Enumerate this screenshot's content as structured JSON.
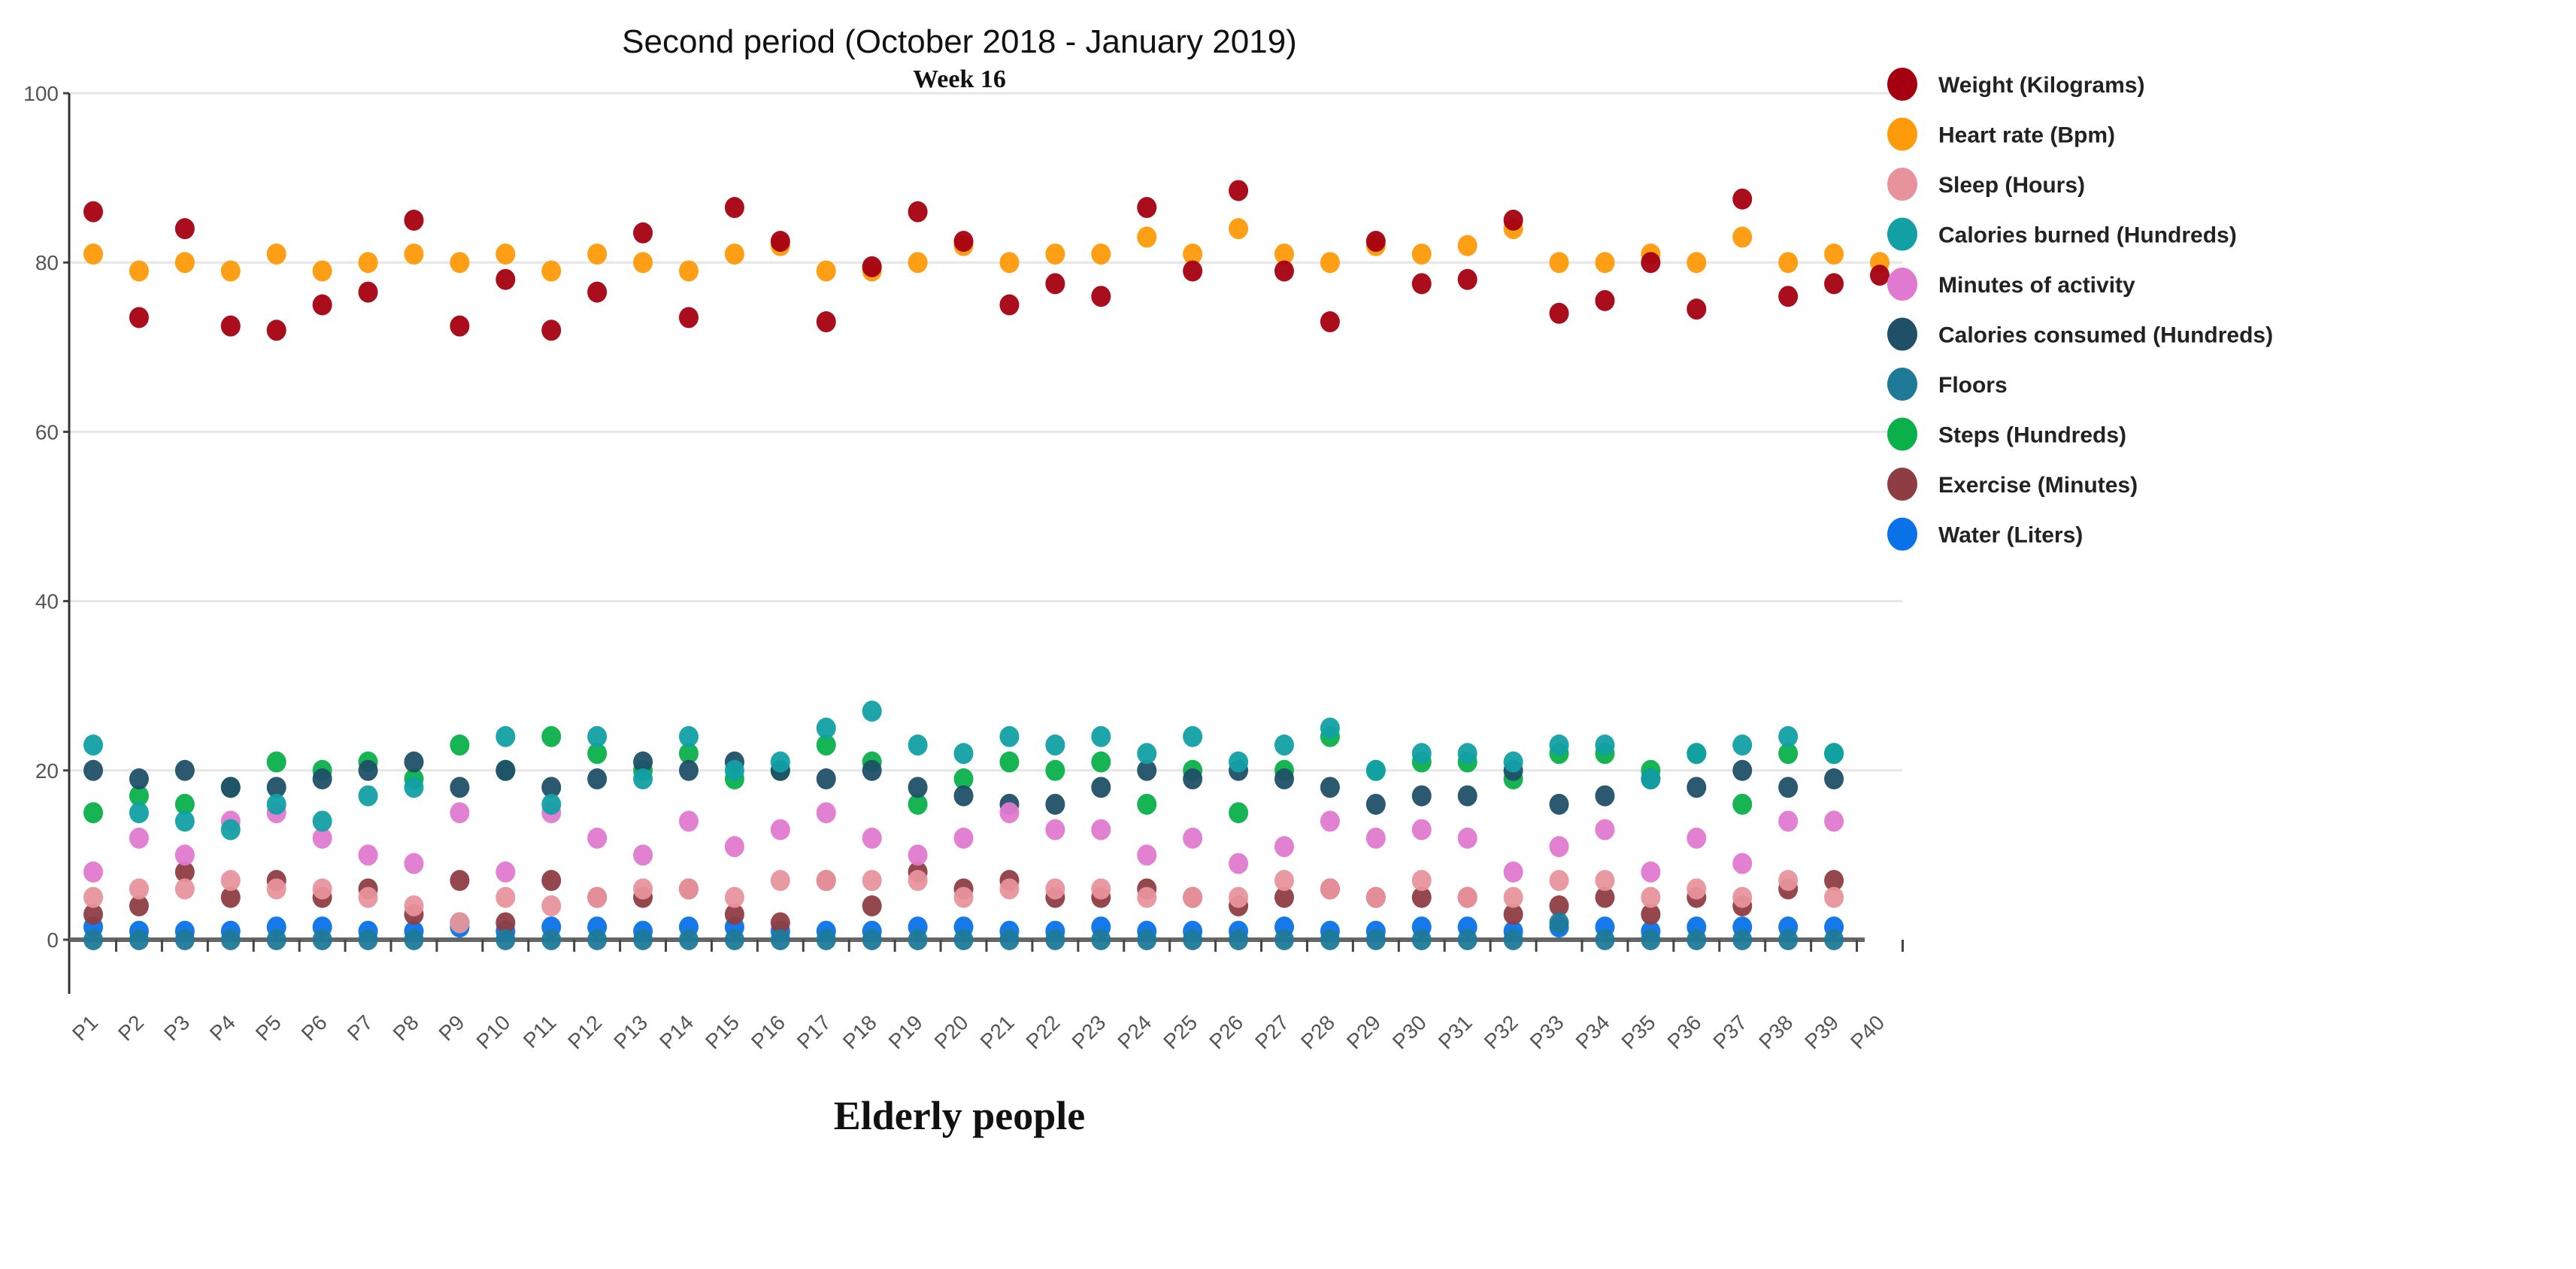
{
  "chart_data": {
    "type": "scatter",
    "title": "Second period (October 2018 - January 2019)",
    "subtitle": "Week 16",
    "xlabel": "Elderly people",
    "ylabel": "",
    "ylim": [
      0,
      100
    ],
    "yticks": [
      0,
      20,
      40,
      60,
      80,
      100
    ],
    "grid": true,
    "legend_position": "right",
    "categories": [
      "P1",
      "P2",
      "P3",
      "P4",
      "P5",
      "P6",
      "P7",
      "P8",
      "P9",
      "P10",
      "P11",
      "P12",
      "P13",
      "P14",
      "P15",
      "P16",
      "P17",
      "P18",
      "P19",
      "P20",
      "P21",
      "P22",
      "P23",
      "P24",
      "P25",
      "P26",
      "P27",
      "P28",
      "P29",
      "P30",
      "P31",
      "P32",
      "P33",
      "P34",
      "P35",
      "P36",
      "P37",
      "P38",
      "P39",
      "P40"
    ],
    "series": [
      {
        "name": "Weight (Kilograms)",
        "color": "#a50010",
        "values": [
          86,
          73.5,
          84,
          72.5,
          72,
          75,
          76.5,
          85,
          72.5,
          78,
          72,
          76.5,
          83.5,
          73.5,
          86.5,
          82.5,
          73,
          79.5,
          86,
          82.5,
          75,
          77.5,
          76,
          86.5,
          79,
          88.5,
          79,
          73,
          82.5,
          77.5,
          78,
          85,
          74,
          75.5,
          80,
          74.5,
          87.5,
          76,
          77.5,
          78.5
        ]
      },
      {
        "name": "Heart rate (Bpm)",
        "color": "#ff9a0a",
        "values": [
          81,
          79,
          80,
          79,
          81,
          79,
          80,
          81,
          80,
          81,
          79,
          81,
          80,
          79,
          81,
          82,
          79,
          79,
          80,
          82,
          80,
          81,
          81,
          83,
          81,
          84,
          81,
          80,
          82,
          81,
          82,
          84,
          80,
          80,
          81,
          80,
          83,
          80,
          81,
          80
        ]
      },
      {
        "name": "Sleep (Hours)",
        "color": "#e8939c",
        "values": [
          5,
          6,
          6,
          7,
          6,
          6,
          5,
          4,
          2,
          5,
          4,
          5,
          6,
          6,
          5,
          7,
          7,
          7,
          7,
          5,
          6,
          6,
          6,
          5,
          5,
          5,
          7,
          6,
          5,
          7,
          5,
          5,
          7,
          7,
          5,
          6,
          5,
          7,
          5,
          null
        ]
      },
      {
        "name": "Calories burned (Hundreds)",
        "color": "#12a0a5",
        "values": [
          23,
          15,
          14,
          13,
          16,
          14,
          17,
          18,
          2,
          24,
          16,
          24,
          19,
          24,
          20,
          21,
          25,
          27,
          23,
          22,
          24,
          23,
          24,
          22,
          24,
          21,
          23,
          25,
          20,
          22,
          22,
          21,
          23,
          23,
          19,
          22,
          23,
          24,
          22,
          null
        ]
      },
      {
        "name": "Minutes of activity",
        "color": "#e07ad0",
        "values": [
          8,
          12,
          10,
          14,
          15,
          12,
          10,
          9,
          15,
          8,
          15,
          12,
          10,
          14,
          11,
          13,
          15,
          12,
          10,
          12,
          15,
          13,
          13,
          10,
          12,
          9,
          11,
          14,
          12,
          13,
          12,
          8,
          11,
          13,
          8,
          12,
          9,
          14,
          14,
          null
        ]
      },
      {
        "name": "Calories consumed (Hundreds)",
        "color": "#1f5068",
        "values": [
          20,
          19,
          20,
          18,
          18,
          19,
          20,
          21,
          18,
          20,
          18,
          19,
          21,
          20,
          21,
          20,
          19,
          20,
          18,
          17,
          16,
          16,
          18,
          20,
          19,
          20,
          19,
          18,
          16,
          17,
          17,
          20,
          16,
          17,
          19,
          18,
          20,
          18,
          19,
          null
        ]
      },
      {
        "name": "Floors",
        "color": "#1f7a98",
        "values": [
          0,
          0,
          0,
          0,
          0,
          0,
          0,
          0,
          2,
          0,
          0,
          0,
          0,
          0,
          0,
          0,
          0,
          0,
          0,
          0,
          0,
          0,
          0,
          0,
          0,
          0,
          0,
          0,
          0,
          0,
          0,
          0,
          2,
          0,
          0,
          0,
          0,
          0,
          0,
          null
        ]
      },
      {
        "name": "Steps (Hundreds)",
        "color": "#0ab04a",
        "values": [
          15,
          17,
          16,
          18,
          21,
          20,
          21,
          19,
          23,
          20,
          24,
          22,
          20,
          22,
          19,
          20,
          23,
          21,
          16,
          19,
          21,
          20,
          21,
          16,
          20,
          15,
          20,
          24,
          20,
          21,
          21,
          19,
          22,
          22,
          20,
          22,
          16,
          22,
          22,
          null
        ]
      },
      {
        "name": "Exercise (Minutes)",
        "color": "#8e3d42",
        "values": [
          3,
          4,
          8,
          5,
          7,
          5,
          6,
          3,
          7,
          2,
          7,
          5,
          5,
          6,
          3,
          2,
          7,
          4,
          8,
          6,
          7,
          5,
          5,
          6,
          5,
          4,
          5,
          6,
          5,
          5,
          5,
          3,
          4,
          5,
          3,
          5,
          4,
          6,
          7,
          null
        ]
      },
      {
        "name": "Water (Liters)",
        "color": "#0a72e8",
        "values": [
          1.5,
          1,
          1,
          1,
          1.5,
          1.5,
          1,
          1,
          1.5,
          1,
          1.5,
          1.5,
          1,
          1.5,
          1.5,
          1,
          1,
          1,
          1.5,
          1.5,
          1,
          1,
          1.5,
          1,
          1,
          1,
          1.5,
          1,
          1,
          1.5,
          1.5,
          1,
          1.5,
          1.5,
          1,
          1.5,
          1.5,
          1.5,
          1.5,
          null
        ]
      }
    ]
  }
}
